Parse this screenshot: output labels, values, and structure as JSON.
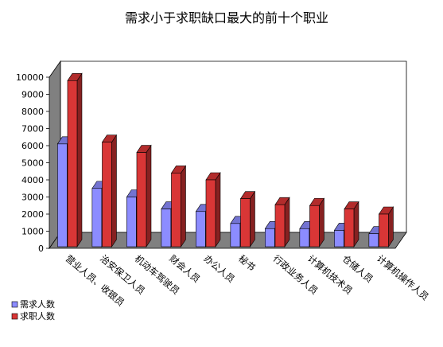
{
  "chart_data": {
    "type": "bar",
    "title": "需求小于求职缺口最大的前十个职业",
    "categories": [
      "营业人员、收银员",
      "治安保卫人员",
      "机动车驾驶员",
      "财会人员",
      "办公人员",
      "秘书",
      "行政业务人员",
      "计算机技术员",
      "仓储人员",
      "计算机操作人员"
    ],
    "series": [
      {
        "name": "需求人数",
        "values": [
          6100,
          3500,
          3000,
          2300,
          2150,
          1450,
          1150,
          1150,
          1050,
          850
        ],
        "color": "#8c8cff"
      },
      {
        "name": "求职人数",
        "values": [
          9800,
          6200,
          5600,
          4400,
          4000,
          2900,
          2550,
          2500,
          2300,
          2000
        ],
        "color": "#d93636"
      }
    ],
    "ylim": [
      0,
      10000
    ],
    "yticks": [
      "0",
      "1000",
      "2000",
      "3000",
      "4000",
      "5000",
      "6000",
      "7000",
      "8000",
      "9000",
      "10000"
    ],
    "grid": false,
    "legend": "bottom-left"
  }
}
